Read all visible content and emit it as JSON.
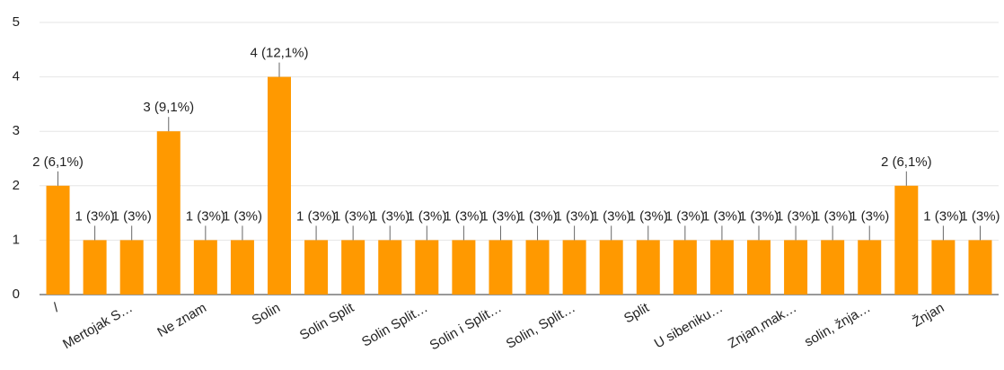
{
  "chart_data": {
    "type": "bar",
    "categories": [
      "/",
      null,
      "Mertojak S…",
      null,
      "Ne znam",
      null,
      "Solin",
      null,
      "Solin Split",
      null,
      "Solin Split…",
      null,
      "Solin i Split…",
      null,
      "Solin, Split…",
      null,
      "Split",
      null,
      "U sibeniku…",
      null,
      "Znjan,mak…",
      null,
      "solin, žnja…",
      null,
      "Žnjan",
      null
    ],
    "values": [
      2,
      1,
      1,
      3,
      1,
      1,
      4,
      1,
      1,
      1,
      1,
      1,
      1,
      1,
      1,
      1,
      1,
      1,
      1,
      1,
      1,
      1,
      1,
      2,
      1,
      1
    ],
    "value_labels": [
      "2 (6,1%)",
      "1 (3%)",
      "1 (3%)",
      "3 (9,1%)",
      "1 (3%)",
      "1 (3%)",
      "4 (12,1%)",
      "1 (3%)",
      "1 (3%)",
      "1 (3%)",
      "1 (3%)",
      "1 (3%)",
      "1 (3%)",
      "1 (3%)",
      "1 (3%)",
      "1 (3%)",
      "1 (3%)",
      "1 (3%)",
      "1 (3%)",
      "1 (3%)",
      "1 (3%)",
      "1 (3%)",
      "1 (3%)",
      "2 (6,1%)",
      "1 (3%)",
      "1 (3%)"
    ],
    "color": "#ff9900",
    "ylim": [
      0,
      5
    ],
    "yticks": [
      0,
      1,
      2,
      3,
      4,
      5
    ],
    "grid": true
  }
}
